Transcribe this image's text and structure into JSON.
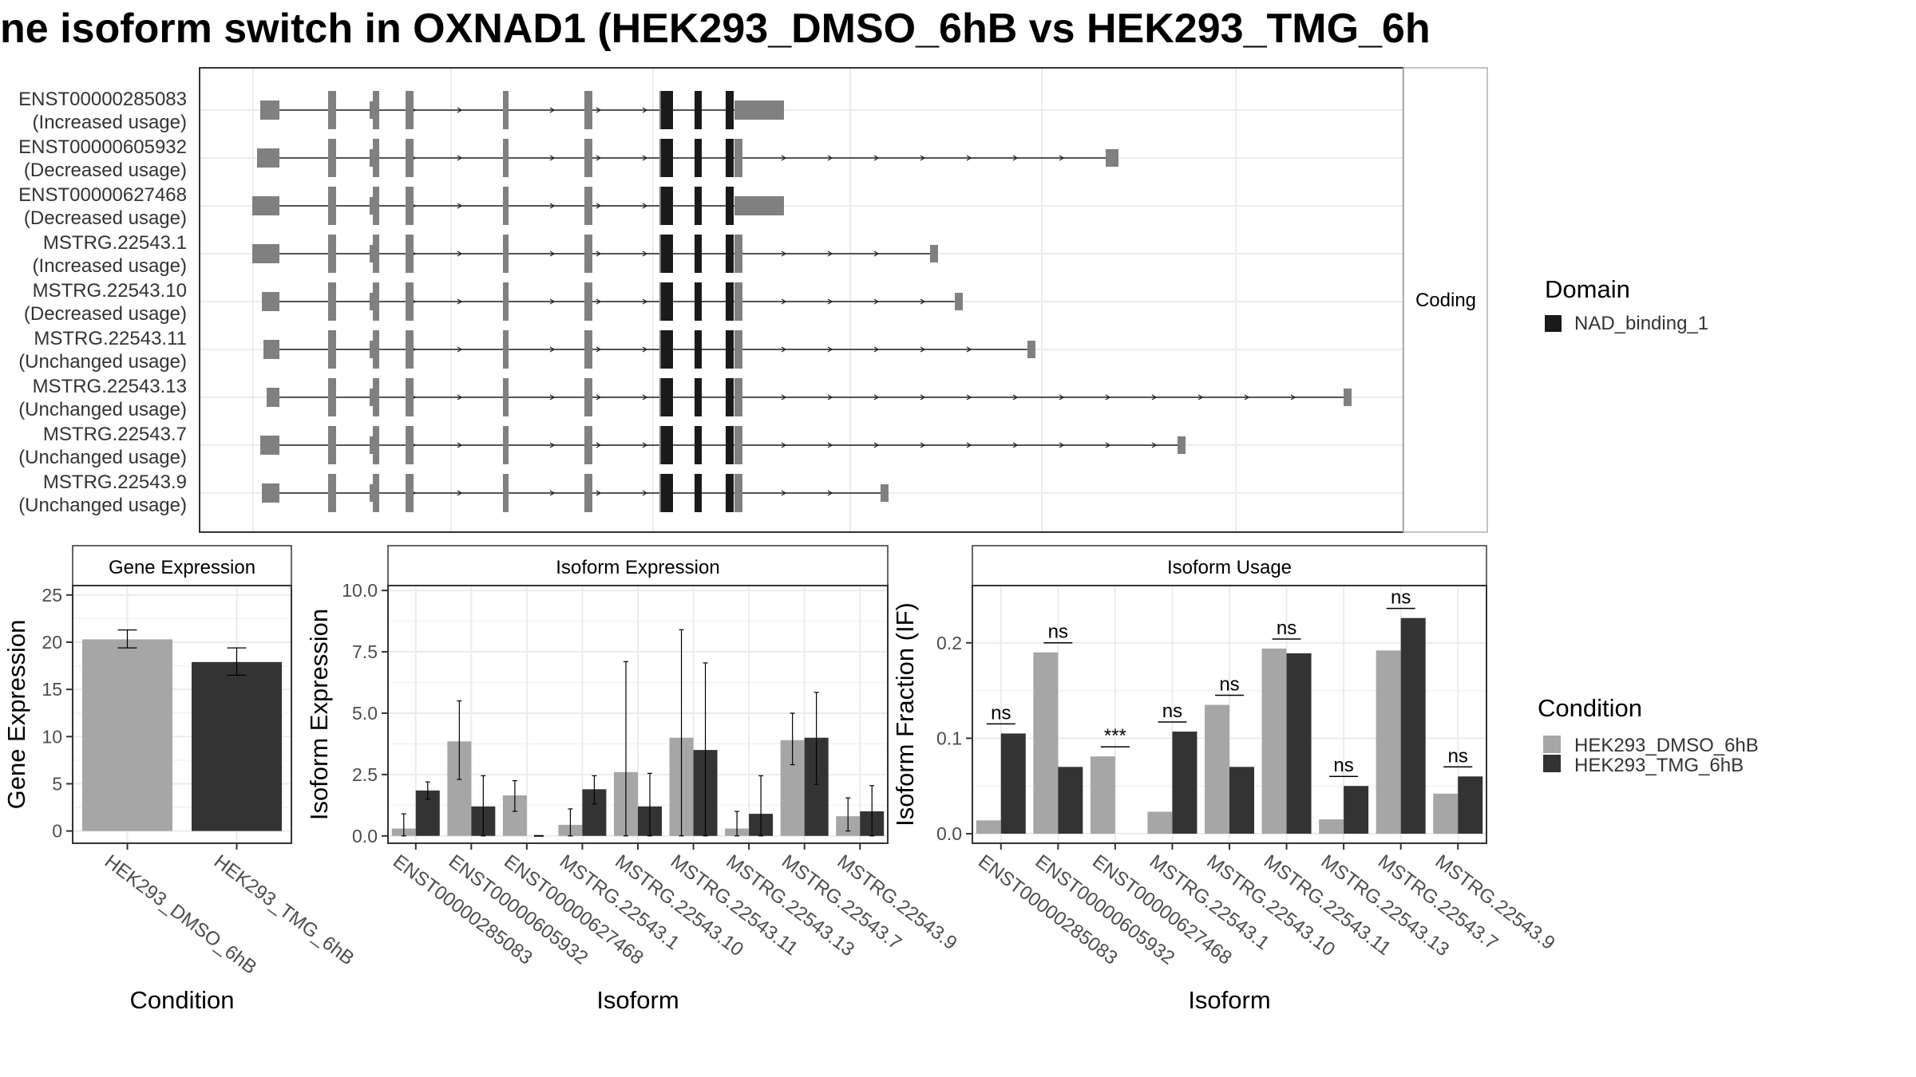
{
  "title": "ne isoform switch in OXNAD1 (HEK293_DMSO_6hB vs HEK293_TMG_6h",
  "colors": {
    "dmso": "#a6a6a6",
    "tmg": "#333333",
    "exon": "#808080",
    "domain": "#1a1a1a",
    "grid": "#ebebeb",
    "axis": "#333333"
  },
  "chart_data": [
    {
      "type": "gene-structure",
      "panel_label": "Coding",
      "legend": {
        "title": "Domain",
        "entries": [
          "NAD_binding_1"
        ]
      },
      "isoforms": [
        {
          "id": "ENST00000285083",
          "usage": "(Increased usage)"
        },
        {
          "id": "ENST00000605932",
          "usage": "(Decreased usage)"
        },
        {
          "id": "ENST00000627468",
          "usage": "(Decreased usage)"
        },
        {
          "id": "MSTRG.22543.1",
          "usage": "(Increased usage)"
        },
        {
          "id": "MSTRG.22543.10",
          "usage": "(Decreased usage)"
        },
        {
          "id": "MSTRG.22543.11",
          "usage": "(Unchanged usage)"
        },
        {
          "id": "MSTRG.22543.13",
          "usage": "(Unchanged usage)"
        },
        {
          "id": "MSTRG.22543.7",
          "usage": "(Unchanged usage)"
        },
        {
          "id": "MSTRG.22543.9",
          "usage": "(Unchanged usage)"
        }
      ]
    },
    {
      "type": "bar",
      "strip": "Gene Expression",
      "xlabel": "Condition",
      "ylabel": "Gene Expression",
      "ylim": [
        -1.3,
        26
      ],
      "yticks": [
        0,
        5,
        10,
        15,
        20,
        25
      ],
      "categories": [
        "HEK293_DMSO_6hB",
        "HEK293_TMG_6hB"
      ],
      "values": [
        20.3,
        17.9
      ],
      "errors": [
        [
          19.4,
          21.3
        ],
        [
          16.5,
          19.4
        ]
      ]
    },
    {
      "type": "bar",
      "strip": "Isoform Expression",
      "xlabel": "Isoform",
      "ylabel": "Isoform Expression",
      "ylim": [
        -0.3,
        10.2
      ],
      "yticks": [
        "0.0",
        "2.5",
        "5.0",
        "7.5",
        "10.0"
      ],
      "categories": [
        "ENST00000285083",
        "ENST00000605932",
        "ENST00000627468",
        "MSTRG.22543.1",
        "MSTRG.22543.10",
        "MSTRG.22543.11",
        "MSTRG.22543.13",
        "MSTRG.22543.7",
        "MSTRG.22543.9"
      ],
      "series": [
        {
          "name": "HEK293_DMSO_6hB",
          "values": [
            0.3,
            3.85,
            1.65,
            0.45,
            2.6,
            4.0,
            0.3,
            3.9,
            0.8
          ],
          "errors": [
            [
              0.0,
              0.9
            ],
            [
              2.3,
              5.5
            ],
            [
              1.0,
              2.25
            ],
            [
              0.0,
              1.1
            ],
            [
              0.0,
              7.1
            ],
            [
              0.0,
              8.4
            ],
            [
              0.0,
              1.0
            ],
            [
              2.9,
              5.0
            ],
            [
              0.2,
              1.55
            ]
          ]
        },
        {
          "name": "HEK293_TMG_6hB",
          "values": [
            1.85,
            1.2,
            0.0,
            1.9,
            1.2,
            3.5,
            0.9,
            4.0,
            1.0
          ],
          "errors": [
            [
              1.5,
              2.2
            ],
            [
              0.0,
              2.45
            ],
            [
              0.0,
              0.0
            ],
            [
              1.3,
              2.45
            ],
            [
              0.0,
              2.55
            ],
            [
              0.0,
              7.05
            ],
            [
              0.0,
              2.45
            ],
            [
              2.1,
              5.85
            ],
            [
              0.0,
              2.05
            ]
          ]
        }
      ]
    },
    {
      "type": "bar",
      "strip": "Isoform Usage",
      "xlabel": "Isoform",
      "ylabel": "Isoform Fraction (IF)",
      "ylim": [
        -0.01,
        0.26
      ],
      "yticks": [
        "0.0",
        "0.1",
        "0.2"
      ],
      "categories": [
        "ENST00000285083",
        "ENST00000605932",
        "ENST00000627468",
        "MSTRG.22543.1",
        "MSTRG.22543.10",
        "MSTRG.22543.11",
        "MSTRG.22543.13",
        "MSTRG.22543.7",
        "MSTRG.22543.9"
      ],
      "series": [
        {
          "name": "HEK293_DMSO_6hB",
          "values": [
            0.014,
            0.19,
            0.081,
            0.023,
            0.135,
            0.194,
            0.015,
            0.192,
            0.042
          ]
        },
        {
          "name": "HEK293_TMG_6hB",
          "values": [
            0.105,
            0.07,
            0.0,
            0.107,
            0.07,
            0.189,
            0.05,
            0.226,
            0.06
          ]
        }
      ],
      "significance": [
        "ns",
        "ns",
        "***",
        "ns",
        "ns",
        "ns",
        "ns",
        "ns",
        "ns"
      ]
    }
  ],
  "condition_legend": {
    "title": "Condition",
    "entries": [
      "HEK293_DMSO_6hB",
      "HEK293_TMG_6hB"
    ]
  }
}
